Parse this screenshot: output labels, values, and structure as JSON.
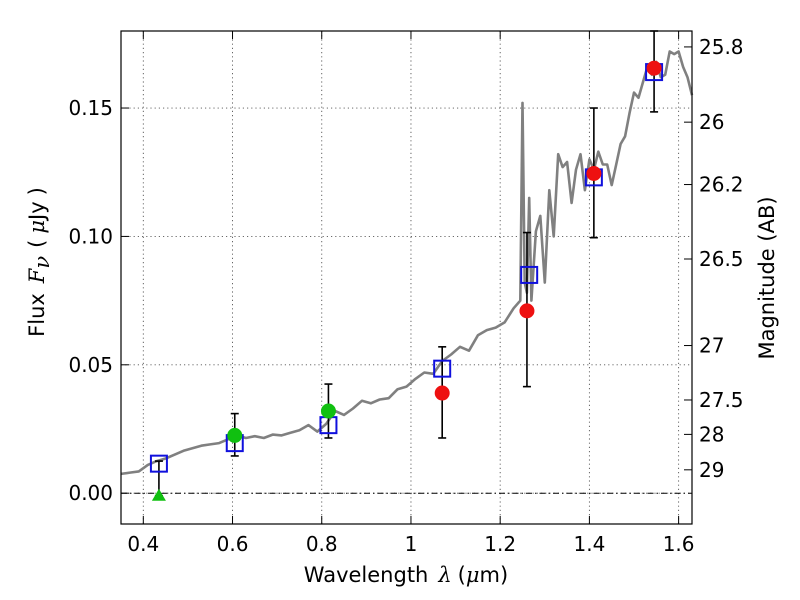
{
  "chart_data": {
    "type": "scatter",
    "xlim": [
      0.35,
      1.63
    ],
    "ylim": [
      -0.012,
      0.18
    ],
    "grid": true,
    "xlabel": {
      "prefix": "Wavelength",
      "symbol": "λ",
      "unit_open": "(",
      "mu": "μ",
      "unit": "m",
      "unit_close": ")"
    },
    "ylabel": {
      "prefix": "Flux",
      "symbol": "F",
      "subscript": "ν",
      "unit_open": "(",
      "mu": "μ",
      "unit": "Jy",
      "unit_close": ")"
    },
    "right_label": "Magnitude (AB)",
    "x_ticks": [
      {
        "value": 0.4,
        "label": "0.4"
      },
      {
        "value": 0.6,
        "label": "0.6"
      },
      {
        "value": 0.8,
        "label": "0.8"
      },
      {
        "value": 1.0,
        "label": "1"
      },
      {
        "value": 1.2,
        "label": "1.2"
      },
      {
        "value": 1.4,
        "label": "1.4"
      },
      {
        "value": 1.6,
        "label": "1.6"
      }
    ],
    "y_ticks": [
      {
        "value": 0.0,
        "label": "0.00"
      },
      {
        "value": 0.05,
        "label": "0.05"
      },
      {
        "value": 0.1,
        "label": "0.10"
      },
      {
        "value": 0.15,
        "label": "0.15"
      }
    ],
    "mag_ticks": [
      {
        "flux": 0.1738,
        "label": "25.8"
      },
      {
        "flux": 0.1445,
        "label": "26"
      },
      {
        "flux": 0.1202,
        "label": "26.2"
      },
      {
        "flux": 0.0912,
        "label": "26.5"
      },
      {
        "flux": 0.0575,
        "label": "27"
      },
      {
        "flux": 0.0363,
        "label": "27.5"
      },
      {
        "flux": 0.0229,
        "label": "28"
      },
      {
        "flux": 0.0091,
        "label": "29"
      }
    ],
    "model_spectrum": {
      "name": "model SED",
      "color": "#808080",
      "x": [
        0.35,
        0.37,
        0.39,
        0.41,
        0.43,
        0.45,
        0.47,
        0.49,
        0.51,
        0.53,
        0.55,
        0.57,
        0.59,
        0.61,
        0.63,
        0.65,
        0.67,
        0.69,
        0.71,
        0.73,
        0.75,
        0.77,
        0.79,
        0.81,
        0.83,
        0.85,
        0.87,
        0.89,
        0.91,
        0.93,
        0.95,
        0.97,
        0.99,
        1.01,
        1.03,
        1.05,
        1.07,
        1.09,
        1.11,
        1.13,
        1.15,
        1.17,
        1.19,
        1.21,
        1.23,
        1.245,
        1.25,
        1.255,
        1.26,
        1.265,
        1.27,
        1.28,
        1.29,
        1.3,
        1.31,
        1.32,
        1.33,
        1.34,
        1.35,
        1.36,
        1.37,
        1.38,
        1.39,
        1.4,
        1.41,
        1.42,
        1.43,
        1.44,
        1.45,
        1.46,
        1.47,
        1.48,
        1.49,
        1.5,
        1.51,
        1.52,
        1.53,
        1.54,
        1.55,
        1.56,
        1.57,
        1.58,
        1.59,
        1.6,
        1.61,
        1.62,
        1.63
      ],
      "y": [
        0.0075,
        0.008,
        0.0085,
        0.011,
        0.0125,
        0.0135,
        0.015,
        0.0165,
        0.0175,
        0.0185,
        0.019,
        0.0195,
        0.021,
        0.0225,
        0.0215,
        0.0222,
        0.0215,
        0.0228,
        0.0225,
        0.0235,
        0.0245,
        0.0265,
        0.024,
        0.027,
        0.032,
        0.0305,
        0.033,
        0.036,
        0.035,
        0.0365,
        0.037,
        0.0405,
        0.0415,
        0.0445,
        0.047,
        0.0465,
        0.0515,
        0.054,
        0.057,
        0.0555,
        0.0615,
        0.0635,
        0.0645,
        0.0665,
        0.072,
        0.075,
        0.152,
        0.082,
        0.078,
        0.115,
        0.075,
        0.102,
        0.108,
        0.082,
        0.118,
        0.1,
        0.132,
        0.127,
        0.129,
        0.113,
        0.126,
        0.132,
        0.118,
        0.13,
        0.126,
        0.133,
        0.128,
        0.128,
        0.12,
        0.128,
        0.136,
        0.139,
        0.148,
        0.156,
        0.154,
        0.16,
        0.166,
        0.163,
        0.168,
        0.162,
        0.163,
        0.172,
        0.171,
        0.172,
        0.166,
        0.162,
        0.155
      ]
    },
    "series": [
      {
        "name": "green detections",
        "marker": "circle",
        "color": "#10c010",
        "points": [
          {
            "x": 0.605,
            "y": 0.0225,
            "err_low": 0.0145,
            "err_high": 0.031
          },
          {
            "x": 0.815,
            "y": 0.032,
            "err_low": 0.0215,
            "err_high": 0.0425
          }
        ]
      },
      {
        "name": "green upper limit",
        "marker": "triangle",
        "color": "#10c010",
        "points": [
          {
            "x": 0.435,
            "y": -0.001,
            "err_low": -0.001,
            "err_high": 0.0125
          }
        ]
      },
      {
        "name": "red detections",
        "marker": "circle",
        "color": "#ee1111",
        "points": [
          {
            "x": 1.07,
            "y": 0.039,
            "err_low": 0.0215,
            "err_high": 0.057
          },
          {
            "x": 1.26,
            "y": 0.071,
            "err_low": 0.0415,
            "err_high": 0.1015
          },
          {
            "x": 1.41,
            "y": 0.1245,
            "err_low": 0.0995,
            "err_high": 0.15
          },
          {
            "x": 1.545,
            "y": 0.1655,
            "err_low": 0.1485,
            "err_high": 0.18
          }
        ]
      },
      {
        "name": "model photometry",
        "marker": "square",
        "color": "#1010dd",
        "points": [
          {
            "x": 0.435,
            "y": 0.0115
          },
          {
            "x": 0.605,
            "y": 0.0195
          },
          {
            "x": 0.815,
            "y": 0.0265
          },
          {
            "x": 1.07,
            "y": 0.0485
          },
          {
            "x": 1.265,
            "y": 0.085
          },
          {
            "x": 1.41,
            "y": 0.123
          },
          {
            "x": 1.545,
            "y": 0.164
          }
        ]
      }
    ]
  }
}
